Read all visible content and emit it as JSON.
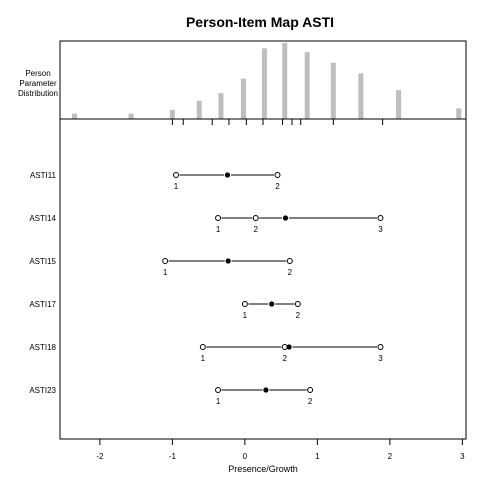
{
  "chart_data": {
    "type": "person-item-map",
    "title": "Person-Item Map ASTI",
    "person_panel_label": [
      "Person",
      "Parameter",
      "Distribution"
    ],
    "xlabel": "Presence/Growth",
    "xlim": [
      -2.55,
      3.05
    ],
    "xticks": [
      -2,
      -1,
      0,
      1,
      2,
      3
    ],
    "person_distribution": {
      "bar_color": "#bebebe",
      "bars": [
        {
          "x": -2.35,
          "h": 0.07
        },
        {
          "x": -1.57,
          "h": 0.07
        },
        {
          "x": -1.0,
          "h": 0.12
        },
        {
          "x": -0.63,
          "h": 0.24
        },
        {
          "x": -0.33,
          "h": 0.34
        },
        {
          "x": -0.02,
          "h": 0.53
        },
        {
          "x": 0.27,
          "h": 0.93
        },
        {
          "x": 0.55,
          "h": 1.0
        },
        {
          "x": 0.86,
          "h": 0.88
        },
        {
          "x": 1.22,
          "h": 0.74
        },
        {
          "x": 1.6,
          "h": 0.6
        },
        {
          "x": 2.12,
          "h": 0.38
        },
        {
          "x": 2.95,
          "h": 0.14
        }
      ],
      "rug": [
        -1.0,
        -0.85,
        -0.45,
        -0.22,
        0.02,
        0.25,
        0.52,
        0.65,
        0.77,
        1.22,
        1.9
      ]
    },
    "items": [
      {
        "label": "ASTI11",
        "location": -0.24,
        "thresholds": [
          -0.95,
          0.45
        ],
        "threshold_labels": [
          "1",
          "2"
        ]
      },
      {
        "label": "ASTI14",
        "location": 0.56,
        "thresholds": [
          -0.37,
          0.15,
          1.87
        ],
        "threshold_labels": [
          "1",
          "2",
          "3"
        ]
      },
      {
        "label": "ASTI15",
        "location": -0.23,
        "thresholds": [
          -1.1,
          0.62
        ],
        "threshold_labels": [
          "1",
          "2"
        ]
      },
      {
        "label": "ASTI17",
        "location": 0.37,
        "thresholds": [
          0.0,
          0.73
        ],
        "threshold_labels": [
          "1",
          "2"
        ]
      },
      {
        "label": "ASTI18",
        "location": 0.61,
        "thresholds": [
          -0.58,
          0.55,
          1.87
        ],
        "threshold_labels": [
          "1",
          "2",
          "3"
        ]
      },
      {
        "label": "ASTI23",
        "location": 0.29,
        "thresholds": [
          -0.37,
          0.9
        ],
        "threshold_labels": [
          "1",
          "2"
        ]
      }
    ]
  }
}
